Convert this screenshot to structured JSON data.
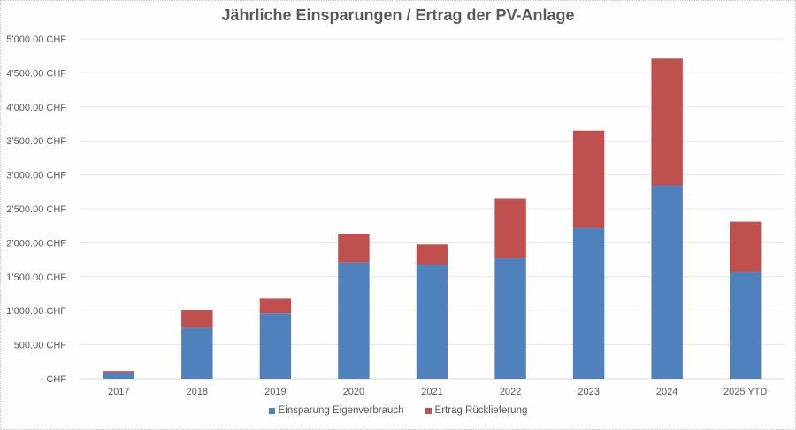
{
  "chart_data": {
    "type": "bar",
    "stacked": true,
    "title": "Jährliche Einsparungen / Ertrag der PV-Anlage",
    "xlabel": "",
    "ylabel": "",
    "categories": [
      "2017",
      "2018",
      "2019",
      "2020",
      "2021",
      "2022",
      "2023",
      "2024",
      "2025 YTD"
    ],
    "series": [
      {
        "name": "Einsparung Eigenverbrauch",
        "color": "#4F81BD",
        "values": [
          85,
          750,
          960,
          1710,
          1680,
          1770,
          2220,
          2845,
          1575
        ]
      },
      {
        "name": "Ertrag Rücklieferung",
        "color": "#C0504D",
        "values": [
          30,
          265,
          220,
          425,
          295,
          880,
          1430,
          1865,
          735
        ]
      }
    ],
    "ylim": [
      0,
      5000
    ],
    "yticks": [
      0,
      500,
      1000,
      1500,
      2000,
      2500,
      3000,
      3500,
      4000,
      4500,
      5000
    ],
    "ytick_labels": [
      "-   CHF",
      "500.00 CHF",
      "1’000.00 CHF",
      "1’500.00 CHF",
      "2’000.00 CHF",
      "2’500.00 CHF",
      "3’000.00 CHF",
      "3’500.00 CHF",
      "4’000.00 CHF",
      "4’500.00 CHF",
      "5’000.00 CHF"
    ],
    "grid": true,
    "legend_position": "bottom"
  }
}
